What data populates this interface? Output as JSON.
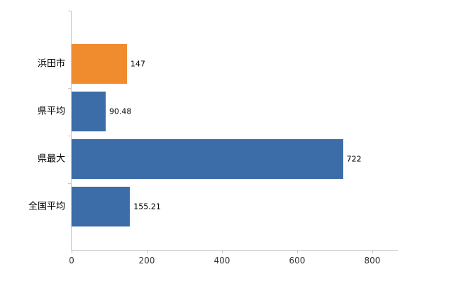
{
  "chart_data": {
    "type": "bar",
    "orientation": "horizontal",
    "title": "",
    "xlabel": "",
    "ylabel": "",
    "categories": [
      "浜田市",
      "県平均",
      "県最大",
      "全国平均"
    ],
    "values": [
      147,
      90.48,
      722,
      155.21
    ],
    "bar_colors": [
      "#f08c2e",
      "#3d6da8",
      "#3d6da8",
      "#3d6da8"
    ],
    "xticks": [
      0,
      200,
      400,
      600,
      800
    ],
    "xlim": [
      0,
      868
    ],
    "grid": false,
    "legend": false,
    "axis_color": "#c9c9c9",
    "label_color": "#000000",
    "tick_label_color": "#333333"
  }
}
